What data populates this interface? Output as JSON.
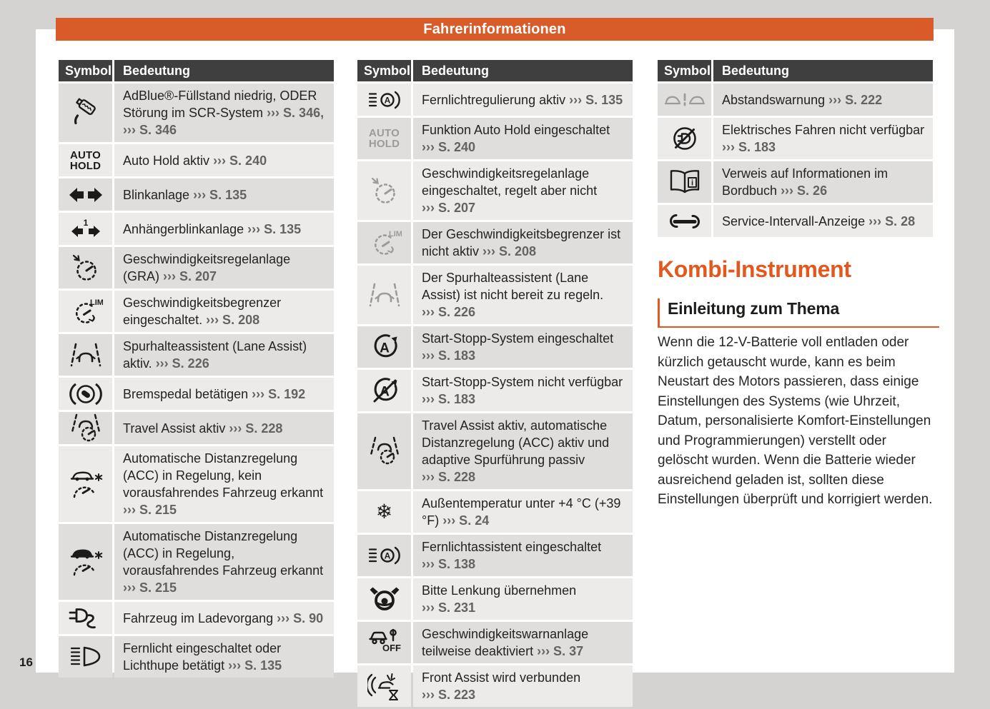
{
  "banner": {
    "title": "Fahrerinformationen"
  },
  "page_number": "16",
  "colors": {
    "accent_orange": "#d95b2a",
    "heading_orange": "#e2581f",
    "header_row_bg": "#3f3f3f",
    "row_dark": "#dfdedd",
    "row_light": "#ecebea"
  },
  "table_header": {
    "symbol": "Symbol",
    "meaning": "Bedeutung"
  },
  "icon_glyphs": {
    "auto_hold": [
      "AUTO",
      "HOLD"
    ],
    "lim": "LIM",
    "start_stop_a": "A",
    "off": "OFF",
    "info": "i",
    "trailer_one": "1",
    "snowflake": "❄"
  },
  "tables": [
    {
      "name": "left",
      "rows": [
        {
          "icon": "adblue-level-icon",
          "gray": false,
          "parts": [
            {
              "text": "AdBlue®-Füllstand niedrig, ODER Störung im SCR-System ",
              "ref": false
            },
            {
              "text": "››› S. 346,",
              "ref": true
            },
            {
              "text": " ",
              "ref": false
            },
            {
              "text": "››› S. 346",
              "ref": true
            }
          ]
        },
        {
          "icon": "auto-hold-icon",
          "gray": false,
          "parts": [
            {
              "text": "Auto Hold aktiv ",
              "ref": false
            },
            {
              "text": "››› S. 240",
              "ref": true
            }
          ]
        },
        {
          "icon": "turn-signals-icon",
          "gray": false,
          "parts": [
            {
              "text": "Blinkanlage ",
              "ref": false
            },
            {
              "text": "››› S. 135",
              "ref": true
            }
          ]
        },
        {
          "icon": "trailer-turn-signals-icon",
          "gray": false,
          "parts": [
            {
              "text": "Anhängerblinkanlage ",
              "ref": false
            },
            {
              "text": "››› S. 135",
              "ref": true
            }
          ]
        },
        {
          "icon": "cruise-control-icon",
          "gray": false,
          "parts": [
            {
              "text": "Geschwindigkeitsregelanlage (GRA) ",
              "ref": false
            },
            {
              "text": "››› S. 207",
              "ref": true
            }
          ]
        },
        {
          "icon": "speed-limiter-icon",
          "gray": false,
          "parts": [
            {
              "text": "Geschwindigkeitsbegrenzer eingeschaltet. ",
              "ref": false
            },
            {
              "text": "››› S. 208",
              "ref": true
            }
          ]
        },
        {
          "icon": "lane-assist-icon",
          "gray": false,
          "parts": [
            {
              "text": "Spurhalteassistent (Lane Assist) aktiv. ",
              "ref": false
            },
            {
              "text": "››› S. 226",
              "ref": true
            }
          ]
        },
        {
          "icon": "brake-pedal-icon",
          "gray": false,
          "parts": [
            {
              "text": "Bremspedal betätigen ",
              "ref": false
            },
            {
              "text": "››› S. 192",
              "ref": true
            }
          ]
        },
        {
          "icon": "travel-assist-icon",
          "gray": false,
          "parts": [
            {
              "text": "Travel Assist aktiv ",
              "ref": false
            },
            {
              "text": "››› S. 228",
              "ref": true
            }
          ]
        },
        {
          "icon": "acc-no-vehicle-icon",
          "gray": false,
          "parts": [
            {
              "text": "Automatische Distanzregelung (ACC) in Regelung, kein vorausfahrendes Fahrzeug erkannt ",
              "ref": false
            },
            {
              "text": "››› S. 215",
              "ref": true
            }
          ]
        },
        {
          "icon": "acc-vehicle-icon",
          "gray": false,
          "parts": [
            {
              "text": "Automatische Distanzregelung (ACC) in Regelung, vorausfahrendes Fahrzeug erkannt ",
              "ref": false
            },
            {
              "text": "››› S. 215",
              "ref": true
            }
          ]
        },
        {
          "icon": "charging-cable-icon",
          "gray": false,
          "parts": [
            {
              "text": "Fahrzeug im Ladevorgang ",
              "ref": false
            },
            {
              "text": "››› S. 90",
              "ref": true
            }
          ]
        },
        {
          "icon": "high-beam-icon",
          "gray": false,
          "parts": [
            {
              "text": "Fernlicht eingeschaltet oder Lichthupe betätigt ",
              "ref": false
            },
            {
              "text": "››› S. 135",
              "ref": true
            }
          ]
        }
      ]
    },
    {
      "name": "middle",
      "rows": [
        {
          "icon": "high-beam-auto-icon",
          "gray": false,
          "parts": [
            {
              "text": "Fernlichtregulierung aktiv ",
              "ref": false
            },
            {
              "text": "››› S. 135",
              "ref": true
            }
          ]
        },
        {
          "icon": "auto-hold-icon",
          "gray": true,
          "parts": [
            {
              "text": "Funktion Auto Hold eingeschaltet ",
              "ref": false
            },
            {
              "text": "››› S. 240",
              "ref": true
            }
          ]
        },
        {
          "icon": "cruise-control-icon",
          "gray": true,
          "parts": [
            {
              "text": "Geschwindigkeitsregelanlage eingeschaltet, regelt aber nicht ",
              "ref": false
            },
            {
              "text": "››› S. 207",
              "ref": true
            }
          ]
        },
        {
          "icon": "speed-limiter-icon",
          "gray": true,
          "parts": [
            {
              "text": "Der Geschwindigkeitsbegrenzer ist nicht aktiv ",
              "ref": false
            },
            {
              "text": "››› S. 208",
              "ref": true
            }
          ]
        },
        {
          "icon": "lane-assist-icon",
          "gray": true,
          "parts": [
            {
              "text": "Der Spurhalteassistent (Lane Assist) ist nicht bereit zu regeln. ",
              "ref": false
            },
            {
              "text": "››› S. 226",
              "ref": true
            }
          ]
        },
        {
          "icon": "start-stop-icon",
          "gray": false,
          "parts": [
            {
              "text": "Start-Stopp-System eingeschaltet ",
              "ref": false
            },
            {
              "text": "››› S. 183",
              "ref": true
            }
          ]
        },
        {
          "icon": "start-stop-off-icon",
          "gray": false,
          "parts": [
            {
              "text": "Start-Stopp-System nicht verfügbar ",
              "ref": false
            },
            {
              "text": "››› S. 183",
              "ref": true
            }
          ]
        },
        {
          "icon": "travel-assist-icon",
          "gray": false,
          "parts": [
            {
              "text": "Travel Assist aktiv, automatische Distanzregelung (ACC) aktiv und adaptive Spurführung passiv ",
              "ref": false
            },
            {
              "text": "››› S. 228",
              "ref": true
            }
          ]
        },
        {
          "icon": "snowflake-icon",
          "gray": false,
          "parts": [
            {
              "text": "Außentemperatur unter +4 °C (+39 °F) ",
              "ref": false
            },
            {
              "text": "››› S. 24",
              "ref": true
            }
          ]
        },
        {
          "icon": "high-beam-auto-icon",
          "gray": false,
          "parts": [
            {
              "text": "Fernlichtassistent eingeschaltet ",
              "ref": false
            },
            {
              "text": "››› S. 138",
              "ref": true
            }
          ]
        },
        {
          "icon": "steering-takeover-icon",
          "gray": false,
          "parts": [
            {
              "text": "Bitte Lenkung übernehmen ",
              "ref": false
            },
            {
              "text": "››› S. 231",
              "ref": true
            }
          ]
        },
        {
          "icon": "speed-warning-off-icon",
          "gray": false,
          "parts": [
            {
              "text": "Geschwindigkeitswarnanlage teilweise deaktiviert ",
              "ref": false
            },
            {
              "text": "››› S. 37",
              "ref": true
            }
          ]
        },
        {
          "icon": "front-assist-wait-icon",
          "gray": false,
          "parts": [
            {
              "text": "Front Assist wird verbunden ",
              "ref": false
            },
            {
              "text": "››› S. 223",
              "ref": true
            }
          ]
        }
      ]
    },
    {
      "name": "right",
      "rows": [
        {
          "icon": "distance-warning-icon",
          "gray": true,
          "parts": [
            {
              "text": "Abstandswarnung ",
              "ref": false
            },
            {
              "text": "››› S. 222",
              "ref": true
            }
          ]
        },
        {
          "icon": "electric-drive-off-icon",
          "gray": false,
          "parts": [
            {
              "text": "Elektrisches Fahren nicht verfügbar ",
              "ref": false
            },
            {
              "text": "››› S. 183",
              "ref": true
            }
          ]
        },
        {
          "icon": "handbook-info-icon",
          "gray": false,
          "parts": [
            {
              "text": "Verweis auf Informationen im Bordbuch ",
              "ref": false
            },
            {
              "text": "››› S. 26",
              "ref": true
            }
          ]
        },
        {
          "icon": "service-wrench-icon",
          "gray": false,
          "parts": [
            {
              "text": "Service-Intervall-Anzeige ",
              "ref": false
            },
            {
              "text": "››› S. 28",
              "ref": true
            }
          ]
        }
      ]
    }
  ],
  "article": {
    "title": "Kombi-Instrument",
    "subtitle": "Einleitung zum Thema",
    "body": "Wenn die 12-V-Batterie voll entladen oder kürzlich getauscht wurde, kann es beim Neustart des Motors passieren, dass einige Einstellungen des Systems (wie Uhrzeit, Datum, personalisierte Komfort-Einstellungen und Programmierungen) verstellt oder gelöscht wurden. Wenn die Batterie wieder ausreichend geladen ist, sollten diese Einstellungen überprüft und korrigiert werden."
  }
}
